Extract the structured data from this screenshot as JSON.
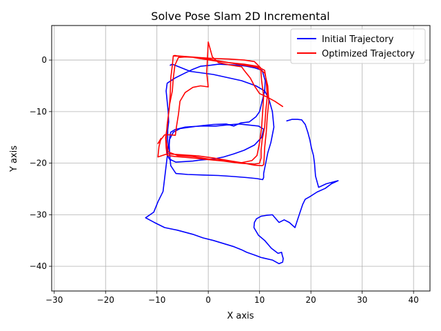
{
  "chart_data": {
    "type": "line",
    "title": "Solve Pose Slam 2D Incremental",
    "xlabel": "X axis",
    "ylabel": "Y axis",
    "xlim": [
      -30.5,
      43.2
    ],
    "ylim": [
      -44.8,
      6.7
    ],
    "xticks": [
      -30,
      -20,
      -10,
      0,
      10,
      20,
      30,
      40
    ],
    "yticks": [
      -40,
      -30,
      -20,
      -10,
      0
    ],
    "grid": true,
    "legend_position": "top-right",
    "series": [
      {
        "name": "Initial Trajectory",
        "color": "#0000ff",
        "x": [
          -7.4,
          -7.0,
          -3.5,
          1.0,
          6.5,
          9.3,
          11.0,
          11.8,
          12.5,
          12.8,
          12.2,
          11.6,
          11.3,
          11.0,
          10.8,
          10.8,
          10.6,
          9.5,
          7.5,
          5.0,
          2.0,
          -1.0,
          -4.0,
          -6.3,
          -7.3,
          -7.5,
          -7.6,
          -7.5,
          -7.3,
          -6.5,
          -4.5,
          -1.5,
          1.5,
          3.5,
          6.0,
          9.8,
          10.8,
          10.4,
          9.0,
          7.0,
          5.0,
          3.0,
          1.0,
          -1.5,
          -3.0,
          -6.3,
          -7.6,
          -8.1,
          -8.0,
          -7.9,
          -7.9,
          -7.7,
          -7.8,
          -8.0,
          -8.2,
          -8.0,
          -6.5,
          -4.5,
          -3.0,
          -1.5,
          0.5,
          2.0,
          4.0,
          6.0,
          7.5,
          9.0,
          10.5,
          11.1,
          11.0,
          10.5,
          10.0,
          9.3,
          8.0,
          6.3,
          5.0,
          3.5,
          1.0,
          -1.0,
          -3.5,
          -5.5,
          -6.8,
          -7.6,
          -8.8,
          -9.8,
          -10.6,
          -12.2,
          -10.5,
          -8.5,
          -6.0,
          -3.0,
          -1.0,
          1.0,
          3.0,
          5.0,
          6.5,
          7.5,
          9.0,
          10.3,
          12.5,
          13.8,
          14.5,
          14.6,
          14.4,
          14.3,
          13.6,
          12.3,
          11.0,
          9.8,
          8.9,
          9.0,
          9.4,
          10.3,
          11.5,
          12.5,
          13.8,
          14.8,
          15.8,
          16.9,
          17.4,
          17.9,
          18.4,
          18.9,
          19.8,
          21.2,
          22.8,
          24.0,
          25.3,
          23.0,
          21.5,
          20.9,
          20.7,
          20.5,
          20.1,
          19.8,
          19.4,
          18.9,
          18.2,
          17.4,
          16.3,
          15.3
        ],
        "y": [
          -1.0,
          -0.8,
          -2.2,
          -2.8,
          -4.0,
          -5.0,
          -6.0,
          -7.5,
          -10.0,
          -13.0,
          -16.0,
          -18.0,
          -19.5,
          -21.0,
          -22.0,
          -22.8,
          -23.2,
          -23.0,
          -22.8,
          -22.6,
          -22.4,
          -22.3,
          -22.2,
          -22.0,
          -20.5,
          -18.5,
          -16.5,
          -15.0,
          -14.0,
          -13.5,
          -13.0,
          -12.8,
          -12.8,
          -12.6,
          -12.4,
          -12.8,
          -13.4,
          -15.0,
          -16.5,
          -17.5,
          -18.2,
          -18.8,
          -19.2,
          -19.4,
          -19.6,
          -19.8,
          -19.2,
          -18.0,
          -16.5,
          -14.8,
          -13.5,
          -12.0,
          -10.0,
          -8.0,
          -6.0,
          -4.5,
          -3.5,
          -2.5,
          -1.8,
          -1.2,
          -1.0,
          -0.8,
          -0.9,
          -1.0,
          -1.2,
          -1.5,
          -2.0,
          -4.0,
          -6.0,
          -8.0,
          -10.0,
          -11.0,
          -12.0,
          -12.2,
          -12.8,
          -12.4,
          -12.5,
          -12.7,
          -13.0,
          -13.3,
          -14.0,
          -15.5,
          -25.5,
          -27.5,
          -29.5,
          -30.6,
          -31.5,
          -32.5,
          -33.0,
          -33.8,
          -34.5,
          -35.0,
          -35.6,
          -36.2,
          -36.8,
          -37.3,
          -37.8,
          -38.3,
          -38.8,
          -39.5,
          -39.2,
          -38.5,
          -37.8,
          -37.3,
          -37.5,
          -36.5,
          -35.0,
          -34.0,
          -32.5,
          -31.5,
          -30.8,
          -30.3,
          -30.1,
          -30.0,
          -31.5,
          -31.0,
          -31.5,
          -32.5,
          -31.0,
          -29.5,
          -28.0,
          -27.0,
          -26.5,
          -25.6,
          -24.9,
          -24.0,
          -23.4,
          -24.0,
          -24.7,
          -22.5,
          -20.0,
          -18.5,
          -17.0,
          -15.5,
          -14.0,
          -12.5,
          -11.6,
          -11.5,
          -11.5,
          -11.8
        ]
      },
      {
        "name": "Optimized Trajectory",
        "color": "#ff0000",
        "x": [
          -6.8,
          -6.5,
          -6.0,
          -2.0,
          1.0,
          4.0,
          7.0,
          9.5,
          11.0,
          11.3,
          11.5,
          11.2,
          11.0,
          10.5,
          10.3,
          10.3,
          10.0,
          9.0,
          6.0,
          3.0,
          0.0,
          -3.0,
          -6.5,
          -8.0,
          -8.2,
          -8.3,
          -8.0,
          -7.8,
          -7.5,
          -7.0,
          -6.8,
          -6.5,
          -5.8,
          -4.5,
          -2.0,
          1.0,
          4.0,
          7.0,
          9.0,
          10.2,
          10.4,
          10.8,
          10.6,
          10.4,
          10.0,
          9.5,
          8.5,
          6.0,
          3.0,
          0.0,
          -3.0,
          -6.0,
          -7.8,
          -8.2,
          -8.0,
          -7.6,
          -7.4,
          -7.3,
          -7.0,
          -6.8,
          -3.5,
          -1.0,
          1.5,
          4.0,
          7.0,
          9.5,
          11.0,
          11.6,
          11.8,
          11.5,
          11.3,
          11.0,
          10.9,
          10.8,
          10.5,
          9.0,
          7.0,
          4.0,
          1.0,
          -2.0,
          -5.0,
          -8.0,
          -9.8,
          -9.6,
          -9.2,
          -9.8,
          -8.5,
          -7.5,
          -6.4,
          -6.2,
          -5.8,
          -5.5,
          -4.5,
          -3.0,
          -1.5,
          0.0,
          -0.3,
          0.0,
          0.8,
          2.0,
          4.5,
          6.5,
          7.0,
          8.2,
          9.0,
          10.0,
          11.5,
          13.0,
          14.5
        ],
        "y": [
          0.8,
          0.9,
          0.8,
          0.5,
          0.0,
          -0.5,
          -0.8,
          -1.2,
          -2.0,
          -4.0,
          -7.0,
          -10.0,
          -13.0,
          -15.5,
          -17.5,
          -19.0,
          -20.0,
          -20.2,
          -20.0,
          -19.6,
          -19.3,
          -19.0,
          -18.7,
          -18.5,
          -17.0,
          -15.0,
          -13.0,
          -11.0,
          -8.5,
          -6.0,
          -3.5,
          -1.0,
          0.5,
          0.6,
          0.5,
          0.3,
          0.2,
          0.0,
          -0.3,
          -1.5,
          -4.0,
          -7.0,
          -10.0,
          -13.0,
          -16.0,
          -18.5,
          -19.5,
          -20.0,
          -19.5,
          -19.2,
          -18.7,
          -18.5,
          -17.8,
          -15.5,
          -12.5,
          -9.5,
          -6.5,
          -3.5,
          -1.0,
          0.8,
          0.6,
          0.2,
          -0.2,
          -0.5,
          -1.0,
          -1.4,
          -2.5,
          -5.0,
          -8.0,
          -11.0,
          -14.0,
          -17.0,
          -19.0,
          -20.3,
          -20.5,
          -20.4,
          -20.0,
          -19.5,
          -19.0,
          -18.6,
          -18.4,
          -18.2,
          -18.8,
          -16.8,
          -15.2,
          -16.2,
          -14.5,
          -14.5,
          -14.6,
          -13.0,
          -10.5,
          -8.0,
          -6.3,
          -5.3,
          -5.0,
          -5.2,
          -2.5,
          3.5,
          0.6,
          -0.5,
          -1.0,
          -1.3,
          -2.0,
          -3.5,
          -5.0,
          -6.5,
          -7.2,
          -8.0,
          -9.0
        ]
      }
    ]
  }
}
